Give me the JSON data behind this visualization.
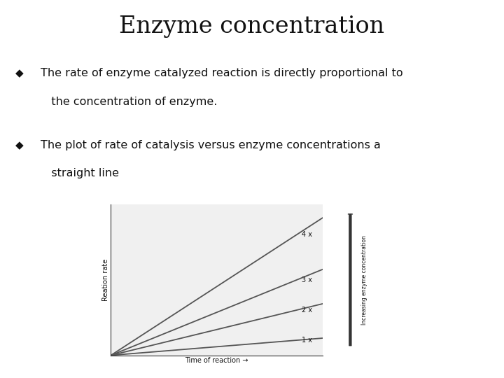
{
  "title": "Enzyme concentration",
  "bullet1_line1": "The rate of enzyme catalyzed reaction is directly proportional to",
  "bullet1_line2": "   the concentration of enzyme.",
  "bullet2_line1": "The plot of rate of catalysis versus enzyme concentrations a",
  "bullet2_line2": "   straight line",
  "bullet_symbol": "◆",
  "line_slopes": [
    0.5,
    1.5,
    2.5,
    4.0
  ],
  "line_labels": [
    "1 x",
    "2 x",
    "3 x",
    "4 x"
  ],
  "line_color": "#555555",
  "x_label": "Time of reaction →",
  "y_label": "Reation rate",
  "right_arrow_label": "Increasing enzyme concentration",
  "bg_color": "#ffffff",
  "plot_bg_color": "#f0f0f0",
  "title_fontsize": 24,
  "bullet_fontsize": 11.5,
  "axis_label_fontsize": 7,
  "line_label_fontsize": 7
}
